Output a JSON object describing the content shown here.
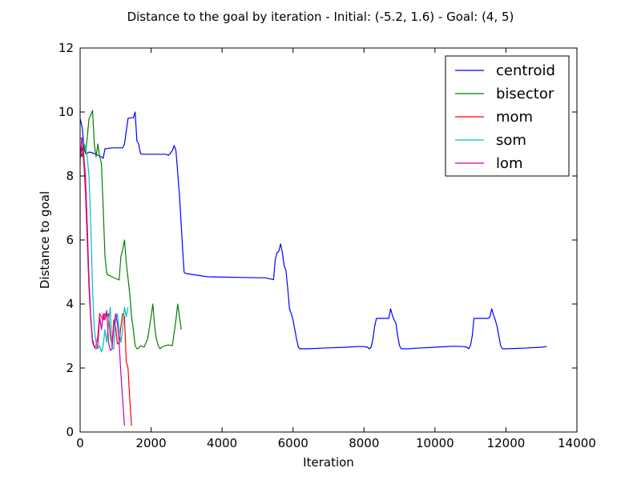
{
  "chart_data": {
    "type": "line",
    "title": "Distance to the goal by iteration - Initial: (-5.2, 1.6) - Goal: (4, 5)",
    "xlabel": "Iteration",
    "ylabel": "Distance to goal",
    "xlim": [
      0,
      14000
    ],
    "ylim": [
      0,
      12
    ],
    "xticks": [
      0,
      2000,
      4000,
      6000,
      8000,
      10000,
      12000,
      14000
    ],
    "yticks": [
      0,
      2,
      4,
      6,
      8,
      10,
      12
    ],
    "xtick_labels": [
      "0",
      "2000",
      "4000",
      "6000",
      "8000",
      "10000",
      "12000",
      "14000"
    ],
    "ytick_labels": [
      "0",
      "2",
      "4",
      "6",
      "8",
      "10",
      "12"
    ],
    "grid": false,
    "legend_position": "top-right",
    "series": [
      {
        "name": "centroid",
        "color": "#0000ff",
        "x": [
          0,
          60,
          120,
          180,
          260,
          400,
          600,
          650,
          700,
          900,
          1200,
          1250,
          1350,
          1450,
          1500,
          1550,
          1600,
          1650,
          1700,
          1750,
          2000,
          2400,
          2500,
          2600,
          2650,
          2700,
          2800,
          2900,
          2930,
          2950,
          3000,
          3300,
          3600,
          4000,
          5000,
          5200,
          5450,
          5500,
          5550,
          5600,
          5650,
          5700,
          5750,
          5800,
          5850,
          5900,
          5950,
          6000,
          6050,
          6100,
          6150,
          6200,
          6250,
          6400,
          7000,
          7500,
          7800,
          8000,
          8100,
          8150,
          8200,
          8250,
          8300,
          8350,
          8400,
          8500,
          8700,
          8750,
          8800,
          8850,
          8900,
          8950,
          9000,
          9050,
          9100,
          9200,
          9500,
          10000,
          10500,
          10800,
          10900,
          10950,
          11000,
          11050,
          11100,
          11200,
          11500,
          11550,
          11600,
          11650,
          11700,
          11750,
          11800,
          11850,
          11900,
          11950,
          12000,
          12500,
          13000,
          13150
        ],
        "y": [
          9.8,
          9.5,
          8.8,
          8.7,
          8.75,
          8.7,
          8.6,
          8.55,
          8.85,
          8.88,
          8.88,
          9.0,
          9.8,
          9.82,
          9.82,
          10.0,
          9.1,
          9.0,
          8.7,
          8.68,
          8.68,
          8.68,
          8.65,
          8.8,
          8.95,
          8.8,
          7.4,
          5.5,
          5.0,
          4.97,
          4.95,
          4.9,
          4.85,
          4.84,
          4.82,
          4.82,
          4.76,
          5.4,
          5.6,
          5.65,
          5.88,
          5.6,
          5.2,
          5.05,
          4.5,
          3.85,
          3.7,
          3.5,
          3.2,
          2.9,
          2.65,
          2.6,
          2.6,
          2.6,
          2.63,
          2.65,
          2.67,
          2.67,
          2.65,
          2.6,
          2.65,
          2.9,
          3.3,
          3.55,
          3.55,
          3.55,
          3.55,
          3.85,
          3.65,
          3.5,
          3.4,
          3.0,
          2.7,
          2.6,
          2.6,
          2.6,
          2.62,
          2.65,
          2.68,
          2.67,
          2.65,
          2.6,
          2.7,
          3.0,
          3.55,
          3.55,
          3.55,
          3.6,
          3.85,
          3.65,
          3.5,
          3.3,
          3.0,
          2.7,
          2.6,
          2.6,
          2.6,
          2.62,
          2.65,
          2.67
        ]
      },
      {
        "name": "bisector",
        "color": "#008000",
        "x": [
          0,
          50,
          100,
          150,
          200,
          250,
          300,
          350,
          400,
          450,
          500,
          550,
          600,
          650,
          700,
          750,
          800,
          850,
          900,
          1000,
          1100,
          1150,
          1200,
          1250,
          1300,
          1350,
          1400,
          1450,
          1500,
          1550,
          1600,
          1650,
          1700,
          1800,
          1900,
          2000,
          2050,
          2100,
          2150,
          2200,
          2250,
          2300,
          2400,
          2500,
          2600,
          2700,
          2750,
          2800,
          2850
        ],
        "y": [
          8.8,
          8.6,
          9.0,
          8.7,
          9.2,
          9.8,
          9.9,
          10.05,
          9.0,
          8.6,
          9.0,
          8.6,
          8.4,
          7.0,
          5.5,
          4.95,
          4.9,
          4.88,
          4.85,
          4.8,
          4.75,
          5.5,
          5.7,
          6.0,
          5.3,
          4.8,
          4.3,
          3.6,
          3.2,
          2.7,
          2.6,
          2.62,
          2.7,
          2.65,
          2.9,
          3.6,
          4.0,
          3.3,
          2.9,
          2.7,
          2.6,
          2.65,
          2.7,
          2.72,
          2.7,
          3.5,
          4.0,
          3.6,
          3.2
        ]
      },
      {
        "name": "mom",
        "color": "#ff0000",
        "x": [
          0,
          50,
          100,
          150,
          200,
          250,
          300,
          350,
          400,
          450,
          500,
          550,
          600,
          650,
          700,
          750,
          800,
          850,
          900,
          950,
          1000,
          1050,
          1100,
          1150,
          1200,
          1250,
          1300,
          1350,
          1400,
          1450
        ],
        "y": [
          8.6,
          8.9,
          8.5,
          7.5,
          6.0,
          4.5,
          3.5,
          2.8,
          2.65,
          2.7,
          3.0,
          3.7,
          3.6,
          3.5,
          3.7,
          3.6,
          3.7,
          3.0,
          2.7,
          3.5,
          3.3,
          2.75,
          2.8,
          3.3,
          3.7,
          3.6,
          2.2,
          2.0,
          1.0,
          0.2
        ]
      },
      {
        "name": "som",
        "color": "#00bfbf",
        "x": [
          0,
          80,
          150,
          200,
          250,
          300,
          350,
          400,
          450,
          500,
          550,
          600,
          650,
          700,
          750,
          800,
          850,
          900,
          950,
          1000,
          1050,
          1100,
          1150,
          1200,
          1250,
          1300,
          1350
        ],
        "y": [
          9.2,
          9.1,
          8.9,
          8.6,
          8.0,
          6.5,
          4.5,
          3.2,
          2.8,
          2.6,
          2.7,
          2.5,
          2.7,
          3.2,
          2.8,
          3.4,
          3.9,
          2.6,
          2.6,
          3.5,
          3.7,
          3.2,
          2.8,
          3.2,
          3.9,
          3.6,
          3.9
        ]
      },
      {
        "name": "lom",
        "color": "#bf00bf",
        "x": [
          0,
          50,
          100,
          150,
          200,
          250,
          300,
          350,
          400,
          450,
          500,
          550,
          600,
          650,
          700,
          750,
          800,
          850,
          900,
          950,
          1000,
          1050,
          1100,
          1150,
          1200,
          1250
        ],
        "y": [
          8.5,
          9.2,
          8.7,
          8.0,
          6.5,
          4.8,
          3.6,
          2.9,
          2.65,
          2.6,
          2.7,
          3.6,
          3.2,
          3.7,
          3.5,
          3.8,
          2.8,
          2.55,
          2.6,
          3.3,
          3.7,
          3.4,
          2.8,
          1.8,
          1.0,
          0.2
        ]
      }
    ]
  }
}
